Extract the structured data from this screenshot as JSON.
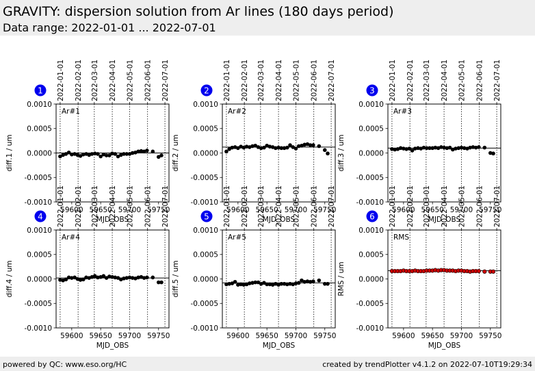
{
  "header": {
    "title": "GRAVITY: dispersion solution from Ar lines (180 days period)",
    "subtitle": "Data range: 2022-01-01 ... 2022-07-01"
  },
  "footer": {
    "left": "powered by QC: www.eso.org/HC",
    "right": "created by trendPlotter v4.1.2 on 2022-07-10T19:29:34"
  },
  "colors": {
    "marker": "#000000",
    "rms_marker": "#cc0000",
    "badge": "#0000ee"
  },
  "chart_data": [
    {
      "type": "scatter",
      "badge": "1",
      "label": "Ar#1",
      "xlabel": "MJD_OBS",
      "ylabel": "diff.1 / um",
      "xlim": [
        59573,
        59768
      ],
      "ylim": [
        -0.001,
        0.001
      ],
      "xticks": [
        59600,
        59650,
        59700,
        59750
      ],
      "yticks": [
        "0.0010",
        "0.0005",
        "0.0000",
        "-0.0005",
        "-0.0010"
      ],
      "ytick_values": [
        0.001,
        0.0005,
        0,
        -0.0005,
        -0.001
      ],
      "date_ticks": [
        "2022-01-01",
        "2022-02-01",
        "2022-03-01",
        "2022-04-01",
        "2022-05-01",
        "2022-06-01",
        "2022-07-01"
      ],
      "date_tick_mjd": [
        59580,
        59611,
        59639,
        59670,
        59700,
        59731,
        59761
      ],
      "reference_line": 0.0,
      "x": [
        59580,
        59585,
        59590,
        59595,
        59600,
        59605,
        59610,
        59615,
        59620,
        59625,
        59630,
        59635,
        59640,
        59645,
        59650,
        59655,
        59660,
        59665,
        59670,
        59675,
        59680,
        59685,
        59690,
        59695,
        59700,
        59705,
        59710,
        59715,
        59720,
        59725,
        59730,
        59740,
        59750,
        59755
      ],
      "y": [
        -7e-05,
        -4e-05,
        -2e-05,
        1e-05,
        -3e-05,
        -2e-05,
        -4e-05,
        -6e-05,
        -3e-05,
        -2e-05,
        -4e-05,
        -2e-05,
        -1e-05,
        -2e-05,
        -7e-05,
        -3e-05,
        -5e-05,
        -5e-05,
        -1e-05,
        -2e-05,
        -7e-05,
        -4e-05,
        -2e-05,
        -2e-05,
        -2e-05,
        0.0,
        1e-05,
        3e-05,
        4e-05,
        3e-05,
        5e-05,
        3e-05,
        -8e-05,
        -5e-05
      ]
    },
    {
      "type": "scatter",
      "badge": "2",
      "label": "Ar#2",
      "xlabel": "MJD_OBS",
      "ylabel": "diff.2 / um",
      "xlim": [
        59573,
        59768
      ],
      "ylim": [
        -0.001,
        0.001
      ],
      "xticks": [
        59600,
        59650,
        59700,
        59750
      ],
      "yticks": [
        "0.0010",
        "0.0005",
        "0.0000",
        "-0.0005",
        "-0.0010"
      ],
      "ytick_values": [
        0.001,
        0.0005,
        0,
        -0.0005,
        -0.001
      ],
      "date_ticks": [
        "2022-01-01",
        "2022-02-01",
        "2022-03-01",
        "2022-04-01",
        "2022-05-01",
        "2022-06-01",
        "2022-07-01"
      ],
      "date_tick_mjd": [
        59580,
        59611,
        59639,
        59670,
        59700,
        59731,
        59761
      ],
      "reference_line": 0.00012,
      "x": [
        59580,
        59585,
        59590,
        59595,
        59600,
        59605,
        59610,
        59615,
        59620,
        59625,
        59630,
        59635,
        59640,
        59645,
        59650,
        59655,
        59660,
        59665,
        59670,
        59675,
        59680,
        59685,
        59690,
        59695,
        59700,
        59705,
        59710,
        59715,
        59720,
        59725,
        59730,
        59740,
        59750,
        59755
      ],
      "y": [
        3e-05,
        8e-05,
        0.00011,
        0.00012,
        0.0001,
        0.00013,
        0.00011,
        0.00013,
        0.00012,
        0.00014,
        0.00015,
        0.00012,
        0.0001,
        0.00011,
        0.00015,
        0.00013,
        0.00012,
        0.0001,
        0.00011,
        0.0001,
        0.0001,
        0.00011,
        0.00016,
        0.00012,
        9e-05,
        0.00014,
        0.00015,
        0.00017,
        0.00018,
        0.00016,
        0.00016,
        0.00014,
        6e-05,
        -1e-05
      ]
    },
    {
      "type": "scatter",
      "badge": "3",
      "label": "Ar#3",
      "xlabel": "MJD_OBS",
      "ylabel": "diff.3 / um",
      "xlim": [
        59573,
        59768
      ],
      "ylim": [
        -0.001,
        0.001
      ],
      "xticks": [
        59600,
        59650,
        59700,
        59750
      ],
      "yticks": [
        "0.0010",
        "0.0005",
        "0.0000",
        "-0.0005",
        "-0.0010"
      ],
      "ytick_values": [
        0.001,
        0.0005,
        0,
        -0.0005,
        -0.001
      ],
      "date_ticks": [
        "2022-01-01",
        "2022-02-01",
        "2022-03-01",
        "2022-04-01",
        "2022-05-01",
        "2022-06-01",
        "2022-07-01"
      ],
      "date_tick_mjd": [
        59580,
        59611,
        59639,
        59670,
        59700,
        59731,
        59761
      ],
      "reference_line": 0.0001,
      "x": [
        59580,
        59585,
        59590,
        59595,
        59600,
        59605,
        59610,
        59615,
        59620,
        59625,
        59630,
        59635,
        59640,
        59645,
        59650,
        59655,
        59660,
        59665,
        59670,
        59675,
        59680,
        59685,
        59690,
        59695,
        59700,
        59705,
        59710,
        59715,
        59720,
        59725,
        59730,
        59740,
        59750,
        59755
      ],
      "y": [
        8e-05,
        7e-05,
        8e-05,
        0.0001,
        9e-05,
        8e-05,
        9e-05,
        5e-05,
        9e-05,
        0.0001,
        9e-05,
        0.00011,
        0.0001,
        0.0001,
        0.0001,
        0.00011,
        0.0001,
        0.00012,
        0.00011,
        0.0001,
        0.00011,
        7e-05,
        9e-05,
        0.0001,
        0.00011,
        0.0001,
        9e-05,
        0.00011,
        0.00012,
        0.00011,
        0.00012,
        0.00011,
        0.0,
        -1e-05
      ]
    },
    {
      "type": "scatter",
      "badge": "4",
      "label": "Ar#4",
      "xlabel": "MJD_OBS",
      "ylabel": "diff.4 / um",
      "xlim": [
        59573,
        59768
      ],
      "ylim": [
        -0.001,
        0.001
      ],
      "xticks": [
        59600,
        59650,
        59700,
        59750
      ],
      "yticks": [
        "0.0010",
        "0.0005",
        "0.0000",
        "-0.0005",
        "-0.0010"
      ],
      "ytick_values": [
        0.001,
        0.0005,
        0,
        -0.0005,
        -0.001
      ],
      "date_ticks": [
        "2022-01-01",
        "2022-02-01",
        "2022-03-01",
        "2022-04-01",
        "2022-05-01",
        "2022-06-01",
        "2022-07-01"
      ],
      "date_tick_mjd": [
        59580,
        59611,
        59639,
        59670,
        59700,
        59731,
        59761
      ],
      "reference_line": 2e-05,
      "x": [
        59580,
        59585,
        59590,
        59595,
        59600,
        59605,
        59610,
        59615,
        59620,
        59625,
        59630,
        59635,
        59640,
        59645,
        59650,
        59655,
        59660,
        59665,
        59670,
        59675,
        59680,
        59685,
        59690,
        59695,
        59700,
        59705,
        59710,
        59715,
        59720,
        59725,
        59730,
        59740,
        59750,
        59755
      ],
      "y": [
        -2e-05,
        -3e-05,
        -1e-05,
        3e-05,
        2e-05,
        3e-05,
        0.0,
        -2e-05,
        -1e-05,
        3e-05,
        2e-05,
        4e-05,
        6e-05,
        3e-05,
        4e-05,
        6e-05,
        2e-05,
        5e-05,
        4e-05,
        3e-05,
        2e-05,
        -1e-05,
        1e-05,
        2e-05,
        3e-05,
        2e-05,
        1e-05,
        3e-05,
        4e-05,
        2e-05,
        3e-05,
        3e-05,
        -7e-05,
        -7e-05
      ]
    },
    {
      "type": "scatter",
      "badge": "5",
      "label": "Ar#5",
      "xlabel": "MJD_OBS",
      "ylabel": "diff.5 / um",
      "xlim": [
        59573,
        59768
      ],
      "ylim": [
        -0.001,
        0.001
      ],
      "xticks": [
        59600,
        59650,
        59700,
        59750
      ],
      "yticks": [
        "0.0010",
        "0.0005",
        "0.0000",
        "-0.0005",
        "-0.0010"
      ],
      "ytick_values": [
        0.001,
        0.0005,
        0,
        -0.0005,
        -0.001
      ],
      "date_ticks": [
        "2022-01-01",
        "2022-02-01",
        "2022-03-01",
        "2022-04-01",
        "2022-05-01",
        "2022-06-01",
        "2022-07-01"
      ],
      "date_tick_mjd": [
        59580,
        59611,
        59639,
        59670,
        59700,
        59731,
        59761
      ],
      "reference_line": -8e-05,
      "x": [
        59580,
        59585,
        59590,
        59595,
        59600,
        59605,
        59610,
        59615,
        59620,
        59625,
        59630,
        59635,
        59640,
        59645,
        59650,
        59655,
        59660,
        59665,
        59670,
        59675,
        59680,
        59685,
        59690,
        59695,
        59700,
        59705,
        59710,
        59715,
        59720,
        59725,
        59730,
        59740,
        59750,
        59755
      ],
      "y": [
        -0.00011,
        -0.0001,
        -9e-05,
        -6e-05,
        -0.00012,
        -0.00011,
        -0.00012,
        -0.00011,
        -9e-05,
        -8e-05,
        -7e-05,
        -7e-05,
        -0.0001,
        -8e-05,
        -0.00011,
        -0.00011,
        -0.00012,
        -0.0001,
        -0.00012,
        -0.0001,
        -0.0001,
        -0.00011,
        -0.0001,
        -0.00011,
        -9e-05,
        -8e-05,
        -3e-05,
        -6e-05,
        -5e-05,
        -6e-05,
        -5e-05,
        -3e-05,
        -0.0001,
        -0.0001
      ]
    },
    {
      "type": "scatter",
      "badge": "6",
      "label": "RMS",
      "xlabel": "MJD_OBS",
      "ylabel": "RMS / um",
      "xlim": [
        59573,
        59768
      ],
      "ylim": [
        -0.001,
        0.001
      ],
      "xticks": [
        59600,
        59650,
        59700,
        59750
      ],
      "yticks": [
        "0.0010",
        "0.0005",
        "0.0000",
        "-0.0005",
        "-0.0010"
      ],
      "ytick_values": [
        0.001,
        0.0005,
        0,
        -0.0005,
        -0.001
      ],
      "date_ticks": [
        "2022-01-01",
        "2022-02-01",
        "2022-03-01",
        "2022-04-01",
        "2022-05-01",
        "2022-06-01",
        "2022-07-01"
      ],
      "date_tick_mjd": [
        59580,
        59611,
        59639,
        59670,
        59700,
        59731,
        59761
      ],
      "reference_line": 0.00017,
      "rms": true,
      "x": [
        59580,
        59585,
        59590,
        59595,
        59600,
        59605,
        59610,
        59615,
        59620,
        59625,
        59630,
        59635,
        59640,
        59645,
        59650,
        59655,
        59660,
        59665,
        59670,
        59675,
        59680,
        59685,
        59690,
        59695,
        59700,
        59705,
        59710,
        59715,
        59720,
        59725,
        59730,
        59740,
        59750,
        59755
      ],
      "y": [
        0.00016,
        0.00016,
        0.00016,
        0.00016,
        0.00017,
        0.00016,
        0.00016,
        0.00016,
        0.00017,
        0.00016,
        0.00016,
        0.00016,
        0.00017,
        0.00017,
        0.00017,
        0.00018,
        0.00017,
        0.00018,
        0.00018,
        0.00017,
        0.00017,
        0.00017,
        0.00016,
        0.00017,
        0.00017,
        0.00016,
        0.00016,
        0.00015,
        0.00016,
        0.00016,
        0.00016,
        0.00015,
        0.00015,
        0.00015
      ]
    }
  ]
}
